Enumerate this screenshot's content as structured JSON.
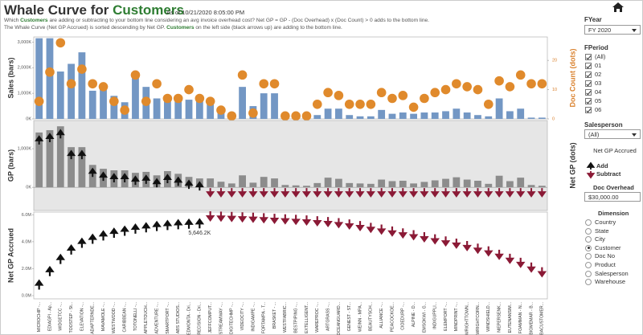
{
  "header": {
    "title": "Whale Curve for",
    "title_highlight": "Customers",
    "title_highlight_color": "#2e7d32",
    "as_of": "As of 10/21/2020 8:05:00 PM",
    "description": [
      [
        {
          "text": "Which "
        },
        {
          "text": "Customers",
          "highlight": true
        },
        {
          "text": " are adding or subtracting to your bottom line considering an avg invoice overhead cost? Net GP = GP - (Doc Overhead) x (Doc Count) > 0 adds to the bottom line."
        }
      ],
      [
        {
          "text": "The Whale Curve (Net GP Accrued) is sorted descending by Net GP. "
        },
        {
          "text": "Customers",
          "highlight": true
        },
        {
          "text": " on the left side (black arrows up) are adding to the bottom line."
        }
      ]
    ]
  },
  "filters": {
    "fyear": {
      "label": "FYear",
      "value": "FY 2020"
    },
    "fperiod": {
      "label": "FPeriod",
      "options": [
        "(All)",
        "01",
        "02",
        "03",
        "04",
        "05",
        "06"
      ]
    },
    "salesperson": {
      "label": "Salesperson",
      "value": "(All)"
    },
    "legend": {
      "title": "Net GP Accrued",
      "items": [
        {
          "label": "Add",
          "color": "#111111"
        },
        {
          "label": "Subtract",
          "color": "#8b1a36"
        }
      ]
    },
    "doc_overhead": {
      "label": "Doc Overhead",
      "value": "$30,000.00"
    },
    "dimension": {
      "label": "Dimension",
      "options": [
        "Country",
        "State",
        "City",
        "Customer",
        "Doc No",
        "Product",
        "Salesperson",
        "Warehouse"
      ],
      "selected": 3
    }
  },
  "chart_data": [
    {
      "type": "bar_dot",
      "ylabel": "Sales (bars)",
      "y2label": "Doc Count (dots)",
      "y2label_color": "#d97f2a",
      "ylim": [
        0,
        3200000
      ],
      "yticks": [
        {
          "value": 0,
          "label": "0K"
        },
        {
          "value": 1000000,
          "label": "1,000K"
        },
        {
          "value": 2000000,
          "label": "2,000K"
        },
        {
          "value": 3000000,
          "label": "3,000K"
        }
      ],
      "y2lim": [
        0,
        28
      ],
      "y2ticks": [
        0,
        10,
        20
      ],
      "series": [
        {
          "color": "#7397c4",
          "values": [
            3150000,
            3150000,
            1850000,
            2150000,
            2600000,
            1100000,
            1150000,
            900000,
            650000,
            1600000,
            1250000,
            800000,
            850000,
            800000,
            750000,
            800000,
            650000,
            300000,
            250000,
            1250000,
            500000,
            1000000,
            1000000,
            100000,
            100000,
            100000,
            150000,
            400000,
            400000,
            150000,
            100000,
            100000,
            350000,
            200000,
            250000,
            200000,
            250000,
            250000,
            300000,
            400000,
            250000,
            150000,
            100000,
            800000,
            300000,
            400000,
            50000,
            50000
          ]
        },
        {
          "color": "#e08a2c",
          "axis": "y2",
          "values": [
            6,
            16,
            26,
            12,
            17,
            12,
            11,
            6,
            3,
            15,
            6,
            12,
            7,
            7,
            10,
            7,
            6,
            3,
            1,
            15,
            2,
            12,
            12,
            1,
            1,
            1,
            5,
            9,
            8,
            5,
            5,
            5,
            9,
            7,
            8,
            4,
            7,
            9,
            10,
            12,
            11,
            10,
            5,
            13,
            11,
            15,
            12,
            12
          ]
        }
      ]
    },
    {
      "type": "bar_arrow",
      "ylabel": "GP (bars)",
      "y2label": "Net GP (dots)",
      "background": "#e6e6e6",
      "ylim": [
        -600000,
        1730000
      ],
      "yticks": [
        {
          "value": 0,
          "label": "0K"
        },
        {
          "value": 1000000,
          "label": "1,000K"
        }
      ],
      "series": [
        {
          "color": "#8c8c8c",
          "values": [
            1420000,
            1480000,
            1580000,
            1040000,
            1040000,
            580000,
            480000,
            440000,
            440000,
            375000,
            400000,
            310000,
            420000,
            350000,
            270000,
            230000,
            230000,
            145000,
            100000,
            310000,
            120000,
            270000,
            230000,
            60000,
            50000,
            40000,
            110000,
            250000,
            220000,
            110000,
            100000,
            90000,
            200000,
            160000,
            170000,
            100000,
            140000,
            180000,
            220000,
            260000,
            200000,
            170000,
            90000,
            300000,
            160000,
            250000,
            60000,
            40000
          ]
        }
      ]
    },
    {
      "type": "arrow",
      "ylabel": "Net GP Accrued",
      "ylim": [
        -240000,
        6200000
      ],
      "yticks": [
        {
          "value": 0,
          "label": "0.0M"
        },
        {
          "value": 2000000,
          "label": "2.0M"
        },
        {
          "value": 4000000,
          "label": "4.0M"
        },
        {
          "value": 6000000,
          "label": "6.0M"
        }
      ],
      "categories": [
        "MICROCHIP -...",
        "EDIAGPI - Ap...",
        "WIDGETCC -...",
        "TOOSTEP - St...",
        "ELEVATION -...",
        "ADAPTERNDE...",
        "MAVAMOLE -...",
        "WESTWOOD -...",
        "CARIBBEAN -...",
        "TOTONELLI -...",
        "APPLETOUCH...",
        "ADVENTURE -...",
        "SMARTPORT -...",
        "ABS STUDIOS...",
        "PIEDMONTA - Dri...",
        "PRECISION - Dri...",
        "JEFFCOMPUT...",
        "STREAMWAY -...",
        "DIGITECHMP -...",
        "VIDEOCITY -...",
        "INDIGAMPE -...",
        "FORTAMPA - T...",
        "BRASKET - ...",
        "WESTFABRIC...",
        "BESTPIPING -...",
        "EXTELLIGENT...",
        "WAREPROC -...",
        "ARTGRASS -...",
        "OCEANGUARD...",
        "GENEST - ST...",
        "WEINN - MPA...",
        "BEAUTYSCH...",
        "ALLIANCE -...",
        "PEACOCKOE...",
        "CIOEDURP -...",
        "ALPINE - D...",
        "EMSOKWI - G...",
        "INDIGUPPLI...",
        "ELEMPORT -...",
        "MINDPRINT -...",
        "WRIGHTTOWN...",
        "WRIGHTCORN...",
        "WINDSHIELD...",
        "NIEPERSENK...",
        "EUTENANSIM...",
        "FOAMMAN - N...",
        "BIGMEMAR - B...",
        "BACUSTOMER..."
      ],
      "values": [
        1100000,
        2100000,
        3000000,
        3700000,
        4200000,
        4500000,
        4750000,
        4950000,
        5100000,
        5250000,
        5350000,
        5450000,
        5520000,
        5580000,
        5620000,
        5646200,
        5600000,
        5580000,
        5560000,
        5530000,
        5500000,
        5460000,
        5420000,
        5380000,
        5340000,
        5300000,
        5240000,
        5180000,
        5100000,
        5000000,
        4880000,
        4750000,
        4620000,
        4480000,
        4340000,
        4200000,
        4050000,
        3900000,
        3740000,
        3580000,
        3400000,
        3200000,
        3000000,
        2750000,
        2450000,
        2150000,
        1800000,
        1450000
      ],
      "value_labels": [
        null,
        null,
        null,
        null,
        null,
        null,
        null,
        null,
        null,
        null,
        null,
        null,
        null,
        null,
        null,
        "5,646.2K",
        null,
        null,
        null,
        null,
        null,
        null,
        null,
        null,
        null,
        null,
        null,
        null,
        null,
        null,
        null,
        null,
        null,
        null,
        null,
        null,
        null,
        null,
        null,
        null,
        null,
        null,
        null,
        null,
        null,
        null,
        null,
        null
      ]
    }
  ]
}
